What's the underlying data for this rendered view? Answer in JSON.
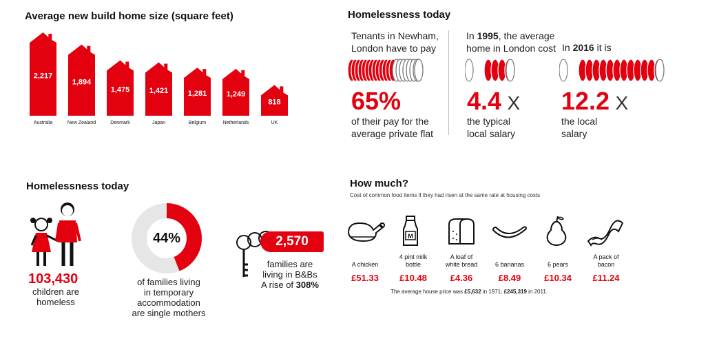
{
  "chart_data": [
    {
      "type": "bar",
      "title": "Average new build home size (square feet)",
      "categories": [
        "Australia",
        "New Zealand",
        "Denmark",
        "Japan",
        "Belgium",
        "Netherlands",
        "UK"
      ],
      "values": [
        2217,
        1894,
        1475,
        1421,
        1281,
        1249,
        818
      ],
      "value_labels": [
        "2,217",
        "1,894",
        "1,475",
        "1,421",
        "1,281",
        "1,249",
        "818"
      ],
      "ylim": [
        0,
        2217
      ],
      "grid": false,
      "color": "#e3000f"
    },
    {
      "type": "table",
      "title": "How much?",
      "subtitle": "Cost of common food items if they had risen at the same rate at housing costs",
      "categories": [
        "A chicken",
        "4 pint milk bottle",
        "A loaf of white bread",
        "6 bananas",
        "6 pears",
        "A pack of bacon"
      ],
      "label_lines": [
        [
          "A chicken"
        ],
        [
          "4 pint milk",
          "bottle"
        ],
        [
          "A loaf of",
          "white bread"
        ],
        [
          "6 bananas"
        ],
        [
          "6 pears"
        ],
        [
          "A pack of",
          "bacon"
        ]
      ],
      "values": [
        51.33,
        10.48,
        4.36,
        8.49,
        10.34,
        11.24
      ],
      "value_labels": [
        "£51.33",
        "£10.48",
        "£4.36",
        "£8.49",
        "£10.34",
        "£11.24"
      ],
      "icons": [
        "chicken-icon",
        "milk-bottle-icon",
        "bread-icon",
        "bananas-icon",
        "pear-icon",
        "bacon-icon"
      ]
    }
  ],
  "colors": {
    "accent": "#e3000f",
    "ring_inactive": "#ffffff",
    "donut_rest": "#e6e6e6",
    "divider": "#bdbdbd"
  },
  "rent": {
    "title": "Homelessness today",
    "intro_line1": "Tenants in Newham,",
    "intro_line2": "London have to pay",
    "percent": "65%",
    "caption_line1": "of their pay for the",
    "caption_line2": "average private flat",
    "coins_filled": 13,
    "coins_total": 20
  },
  "ratio_1995": {
    "intro_pre": "In ",
    "intro_year": "1995",
    "intro_post": ", the average",
    "intro_line2": "home in London cost",
    "value": "4.4",
    "times": "X",
    "caption_line1": "the typical",
    "caption_line2": "local salary",
    "coins_filled": 4,
    "coins_outline": 1
  },
  "ratio_2016": {
    "intro_pre": "In ",
    "intro_year": "2016",
    "intro_post": " it is",
    "value": "12.2",
    "times": "X",
    "caption_line1": "the local",
    "caption_line2": "salary",
    "coins_filled": 12,
    "coins_outline": 1
  },
  "homeless": {
    "title": "Homelessness today",
    "children_count": "103,430",
    "children_line1": "children are",
    "children_line2": "homeless",
    "donut_percent": 44,
    "donut_label": "44%",
    "donut_line1": "of families living",
    "donut_line2": "in temporary",
    "donut_line3": "accommodation",
    "donut_line4": "are single mothers",
    "key_number": "2,570",
    "key_line1": "families are",
    "key_line2": "living in B&Bs",
    "key_line3_pre": "A rise of ",
    "key_line3_value": "308%"
  },
  "footnote": {
    "pre": "The average house price was ",
    "v1971": "£5,632",
    "mid": " in 1971; ",
    "v2011": "£245,319",
    "post": " in 2011."
  }
}
